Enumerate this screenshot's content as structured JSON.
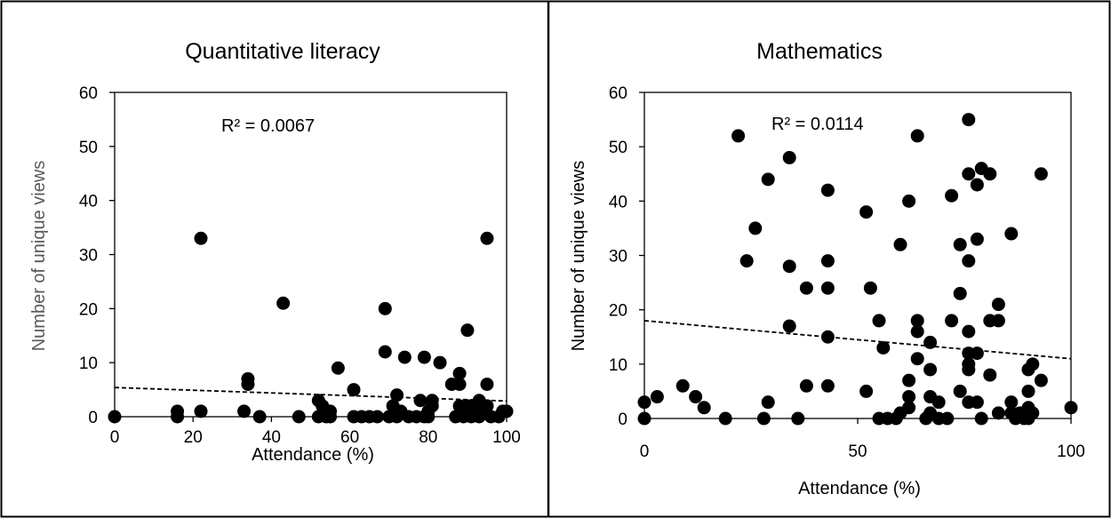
{
  "chart_data": [
    {
      "type": "scatter",
      "title": "Quantitative literacy",
      "xlabel": "Attendance (%)",
      "ylabel": "Number of unique views",
      "xlim": [
        0,
        100
      ],
      "ylim": [
        0,
        60
      ],
      "xticks": [
        "0",
        "20",
        "40",
        "60",
        "80",
        "100"
      ],
      "yticks": [
        "0",
        "10",
        "20",
        "30",
        "40",
        "50",
        "60"
      ],
      "grid": false,
      "marker_color": "#000000",
      "trendline": {
        "style": "dashed",
        "y_at_xmin": 5.4,
        "y_at_xmax": 2.9
      },
      "annotation": "R² = 0.0067",
      "points": [
        [
          0,
          0
        ],
        [
          16,
          0
        ],
        [
          16,
          1
        ],
        [
          22,
          33
        ],
        [
          22,
          1
        ],
        [
          33,
          1
        ],
        [
          34,
          6
        ],
        [
          34,
          7
        ],
        [
          37,
          0
        ],
        [
          43,
          21
        ],
        [
          47,
          0
        ],
        [
          52,
          0
        ],
        [
          52,
          3
        ],
        [
          53,
          2
        ],
        [
          54,
          0
        ],
        [
          55,
          1
        ],
        [
          55,
          0
        ],
        [
          57,
          9
        ],
        [
          61,
          5
        ],
        [
          61,
          0
        ],
        [
          63,
          0
        ],
        [
          65,
          0
        ],
        [
          67,
          0
        ],
        [
          69,
          20
        ],
        [
          69,
          12
        ],
        [
          70,
          0
        ],
        [
          71,
          2
        ],
        [
          72,
          0
        ],
        [
          72,
          4
        ],
        [
          73,
          1
        ],
        [
          74,
          11
        ],
        [
          75,
          0
        ],
        [
          77,
          0
        ],
        [
          78,
          3
        ],
        [
          79,
          11
        ],
        [
          79,
          0
        ],
        [
          80,
          0
        ],
        [
          80,
          1
        ],
        [
          81,
          3
        ],
        [
          81,
          2
        ],
        [
          83,
          10
        ],
        [
          86,
          6
        ],
        [
          87,
          0
        ],
        [
          88,
          2
        ],
        [
          88,
          8
        ],
        [
          88,
          6
        ],
        [
          89,
          0
        ],
        [
          90,
          16
        ],
        [
          90,
          2
        ],
        [
          91,
          1
        ],
        [
          91,
          0
        ],
        [
          92,
          2
        ],
        [
          93,
          3
        ],
        [
          93,
          0
        ],
        [
          94,
          1
        ],
        [
          95,
          2
        ],
        [
          95,
          33
        ],
        [
          95,
          6
        ],
        [
          96,
          0
        ],
        [
          98,
          0
        ],
        [
          99,
          1
        ],
        [
          100,
          1
        ]
      ]
    },
    {
      "type": "scatter",
      "title": "Mathematics",
      "xlabel": "Attendance (%)",
      "ylabel": "Number of unique views",
      "xlim": [
        0,
        100
      ],
      "ylim": [
        0,
        60
      ],
      "xticks": [
        "0",
        "50",
        "100"
      ],
      "yticks": [
        "0",
        "10",
        "20",
        "30",
        "40",
        "50",
        "60"
      ],
      "grid": false,
      "marker_color": "#000000",
      "trendline": {
        "style": "dashed",
        "y_at_xmin": 18,
        "y_at_xmax": 11
      },
      "annotation": "R² = 0.0114",
      "points": [
        [
          0,
          3
        ],
        [
          0,
          0
        ],
        [
          3,
          4
        ],
        [
          9,
          6
        ],
        [
          12,
          4
        ],
        [
          14,
          2
        ],
        [
          19,
          0
        ],
        [
          22,
          52
        ],
        [
          24,
          29
        ],
        [
          26,
          35
        ],
        [
          28,
          0
        ],
        [
          29,
          44
        ],
        [
          29,
          3
        ],
        [
          34,
          48
        ],
        [
          34,
          28
        ],
        [
          34,
          17
        ],
        [
          36,
          0
        ],
        [
          38,
          24
        ],
        [
          38,
          6
        ],
        [
          43,
          42
        ],
        [
          43,
          29
        ],
        [
          43,
          24
        ],
        [
          43,
          15
        ],
        [
          43,
          6
        ],
        [
          52,
          38
        ],
        [
          52,
          5
        ],
        [
          53,
          24
        ],
        [
          55,
          18
        ],
        [
          55,
          0
        ],
        [
          56,
          13
        ],
        [
          57,
          0
        ],
        [
          59,
          0
        ],
        [
          60,
          32
        ],
        [
          60,
          1
        ],
        [
          62,
          40
        ],
        [
          62,
          7
        ],
        [
          62,
          4
        ],
        [
          62,
          2
        ],
        [
          64,
          52
        ],
        [
          64,
          18
        ],
        [
          64,
          16
        ],
        [
          64,
          11
        ],
        [
          66,
          0
        ],
        [
          67,
          14
        ],
        [
          67,
          9
        ],
        [
          67,
          4
        ],
        [
          67,
          1
        ],
        [
          69,
          3
        ],
        [
          69,
          0
        ],
        [
          71,
          0
        ],
        [
          72,
          41
        ],
        [
          72,
          18
        ],
        [
          74,
          32
        ],
        [
          74,
          23
        ],
        [
          74,
          5
        ],
        [
          76,
          55
        ],
        [
          76,
          45
        ],
        [
          76,
          29
        ],
        [
          76,
          16
        ],
        [
          76,
          12
        ],
        [
          76,
          10
        ],
        [
          76,
          9
        ],
        [
          76,
          3
        ],
        [
          78,
          43
        ],
        [
          78,
          33
        ],
        [
          78,
          12
        ],
        [
          78,
          3
        ],
        [
          79,
          46
        ],
        [
          79,
          0
        ],
        [
          81,
          45
        ],
        [
          81,
          18
        ],
        [
          81,
          8
        ],
        [
          83,
          21
        ],
        [
          83,
          18
        ],
        [
          83,
          1
        ],
        [
          86,
          34
        ],
        [
          86,
          3
        ],
        [
          86,
          1
        ],
        [
          87,
          0
        ],
        [
          88,
          1
        ],
        [
          89,
          0
        ],
        [
          90,
          9
        ],
        [
          90,
          5
        ],
        [
          90,
          2
        ],
        [
          90,
          0
        ],
        [
          91,
          10
        ],
        [
          91,
          1
        ],
        [
          93,
          45
        ],
        [
          93,
          7
        ],
        [
          100,
          2
        ]
      ]
    }
  ]
}
